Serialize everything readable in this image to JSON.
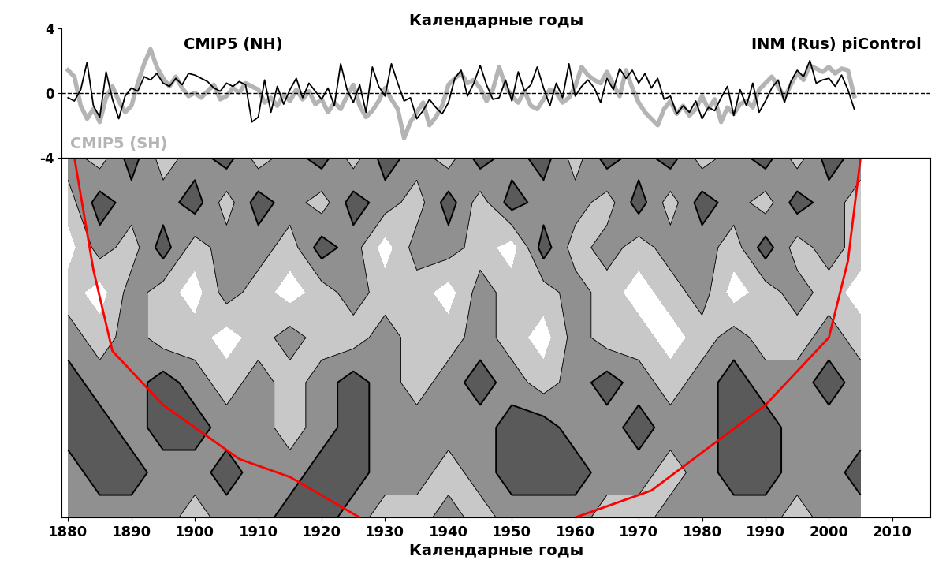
{
  "chart_data": [
    {
      "type": "line",
      "title": "Календарные годы",
      "x": [
        1880,
        1881,
        1882,
        1883,
        1884,
        1885,
        1886,
        1887,
        1888,
        1889,
        1890,
        1891,
        1892,
        1893,
        1894,
        1895,
        1896,
        1897,
        1898,
        1899,
        1900,
        1901,
        1902,
        1903,
        1904,
        1905,
        1906,
        1907,
        1908,
        1909,
        1910,
        1911,
        1912,
        1913,
        1914,
        1915,
        1916,
        1917,
        1918,
        1919,
        1920,
        1921,
        1922,
        1923,
        1924,
        1925,
        1926,
        1927,
        1928,
        1929,
        1930,
        1931,
        1932,
        1933,
        1934,
        1935,
        1936,
        1937,
        1938,
        1939,
        1940,
        1941,
        1942,
        1943,
        1944,
        1945,
        1946,
        1947,
        1948,
        1949,
        1950,
        1951,
        1952,
        1953,
        1954,
        1955,
        1956,
        1957,
        1958,
        1959,
        1960,
        1961,
        1962,
        1963,
        1964,
        1965,
        1966,
        1967,
        1968,
        1969,
        1970,
        1971,
        1972,
        1973,
        1974,
        1975,
        1976,
        1977,
        1978,
        1979,
        1980,
        1981,
        1982,
        1983,
        1984,
        1985,
        1986,
        1987,
        1988,
        1989,
        1990,
        1991,
        1992,
        1993,
        1994,
        1995,
        1996,
        1997,
        1998,
        1999,
        2000,
        2001,
        2002,
        2003,
        2004
      ],
      "series": [
        {
          "name": "CMIP5 (SH)",
          "color": "#b4b4b4",
          "values": [
            1.4,
            1.0,
            -0.8,
            -1.6,
            -1.0,
            -1.8,
            -0.3,
            0.4,
            -0.5,
            -1.2,
            -0.8,
            0.6,
            1.8,
            2.7,
            1.6,
            0.9,
            0.4,
            1.0,
            0.3,
            -0.2,
            0.0,
            -0.3,
            0.1,
            0.5,
            -0.4,
            -0.2,
            0.3,
            0.0,
            0.6,
            0.4,
            0.2,
            -0.6,
            -0.3,
            -0.8,
            -0.1,
            -0.5,
            0.2,
            -0.4,
            0.1,
            -0.7,
            -0.4,
            -1.2,
            -0.6,
            -1.0,
            -0.2,
            0.5,
            -0.8,
            -1.5,
            -1.1,
            -0.5,
            0.3,
            -0.4,
            -1.0,
            -2.8,
            -1.8,
            -1.2,
            -0.6,
            -2.0,
            -1.5,
            -0.8,
            0.5,
            0.9,
            1.2,
            0.6,
            0.8,
            0.3,
            -0.5,
            0.2,
            1.6,
            0.4,
            -0.2,
            -0.6,
            0.1,
            -0.8,
            -1.0,
            -0.4,
            0.2,
            0.0,
            -0.6,
            -0.3,
            0.4,
            1.6,
            1.1,
            0.8,
            0.6,
            1.3,
            0.5,
            -0.2,
            1.4,
            0.3,
            -0.6,
            -1.2,
            -1.6,
            -2.0,
            -1.0,
            -0.5,
            -1.3,
            -0.8,
            -1.4,
            -1.0,
            -0.2,
            -1.0,
            -0.4,
            -1.8,
            -0.9,
            -1.3,
            -0.7,
            -0.5,
            -0.9,
            0.2,
            0.6,
            1.0,
            0.4,
            -0.3,
            0.5,
            1.2,
            0.8,
            1.7,
            1.5,
            1.3,
            1.6,
            1.2,
            1.5,
            1.4,
            -0.2
          ]
        },
        {
          "name": "CMIP5 (NH)",
          "color": "#000000",
          "values": [
            -0.3,
            -0.5,
            0.2,
            1.9,
            -0.8,
            -1.5,
            1.3,
            -0.4,
            -1.6,
            -0.2,
            0.3,
            0.1,
            1.0,
            0.8,
            1.2,
            0.6,
            0.4,
            0.9,
            0.5,
            1.2,
            1.1,
            0.9,
            0.7,
            0.3,
            0.1,
            0.6,
            0.4,
            0.7,
            0.5,
            -1.8,
            -1.5,
            0.8,
            -1.2,
            0.4,
            -0.7,
            0.2,
            0.9,
            -0.3,
            0.6,
            0.1,
            -0.4,
            0.3,
            -0.8,
            1.8,
            0.2,
            -0.6,
            0.5,
            -1.2,
            1.6,
            0.4,
            -0.2,
            1.8,
            0.6,
            -0.5,
            -0.3,
            -1.6,
            -1.1,
            -0.4,
            -0.9,
            -1.3,
            -0.6,
            0.9,
            1.4,
            -0.2,
            0.6,
            1.7,
            0.5,
            -0.4,
            -0.3,
            0.8,
            -0.5,
            1.3,
            0.1,
            0.5,
            1.6,
            0.3,
            -0.8,
            0.6,
            -0.3,
            1.8,
            -0.2,
            0.4,
            0.8,
            0.3,
            -0.6,
            0.9,
            0.2,
            1.5,
            0.9,
            1.4,
            0.6,
            1.2,
            0.3,
            0.9,
            -0.4,
            -0.2,
            -1.3,
            -0.8,
            -1.2,
            -0.5,
            -1.6,
            -0.9,
            -1.1,
            -0.3,
            0.4,
            -1.4,
            0.2,
            -0.8,
            0.6,
            -1.2,
            -0.5,
            0.3,
            0.8,
            -0.6,
            0.7,
            1.4,
            1.0,
            2.0,
            0.6,
            0.8,
            0.9,
            0.4,
            1.1,
            0.2,
            -1.0
          ]
        }
      ],
      "annotations": [
        "INM (Rus) piControl"
      ],
      "reference_line": 0,
      "xlim": [
        1879,
        2016
      ],
      "xticks": [
        1880,
        1890,
        1900,
        1910,
        1920,
        1930,
        1940,
        1950,
        1960,
        1970,
        1980,
        1990,
        2000,
        2010
      ],
      "ylim": [
        -4,
        4
      ],
      "yticks": [
        -4,
        0,
        4
      ],
      "tick_labels": "y"
    },
    {
      "type": "contour",
      "xlabel": "Календарные годы",
      "x": [
        1880,
        1885,
        1890,
        1895,
        1900,
        1905,
        1910,
        1915,
        1920,
        1925,
        1930,
        1935,
        1940,
        1945,
        1950,
        1955,
        1960,
        1965,
        1970,
        1975,
        1980,
        1985,
        1990,
        1995,
        2000,
        2005
      ],
      "y": [
        0,
        1,
        2,
        3,
        4,
        5,
        6,
        7,
        8
      ],
      "cells": [
        [
          2,
          2,
          2,
          2,
          1,
          2,
          2,
          3,
          3,
          2,
          1,
          1,
          2,
          1,
          2,
          2,
          2,
          1,
          1,
          2,
          2,
          2,
          2,
          1,
          2,
          2
        ],
        [
          2,
          3,
          3,
          2,
          2,
          3,
          2,
          2,
          3,
          3,
          2,
          2,
          1,
          2,
          3,
          3,
          3,
          2,
          2,
          1,
          2,
          3,
          3,
          2,
          2,
          3
        ],
        [
          3,
          3,
          2,
          3,
          3,
          2,
          2,
          1,
          2,
          3,
          2,
          2,
          2,
          2,
          3,
          3,
          2,
          2,
          3,
          2,
          2,
          3,
          3,
          2,
          2,
          2
        ],
        [
          3,
          2,
          2,
          3,
          2,
          1,
          2,
          1,
          2,
          3,
          2,
          1,
          2,
          3,
          2,
          1,
          2,
          3,
          2,
          1,
          2,
          3,
          2,
          2,
          3,
          2
        ],
        [
          2,
          1,
          2,
          1,
          1,
          0,
          1,
          2,
          1,
          1,
          2,
          1,
          1,
          2,
          1,
          0,
          2,
          1,
          1,
          0,
          1,
          2,
          1,
          1,
          2,
          1
        ],
        [
          1,
          0,
          2,
          1,
          0,
          2,
          1,
          0,
          1,
          2,
          1,
          1,
          0,
          2,
          1,
          1,
          2,
          1,
          0,
          1,
          2,
          0,
          1,
          2,
          1,
          0
        ],
        [
          0,
          2,
          1,
          3,
          1,
          2,
          2,
          1,
          3,
          2,
          0,
          2,
          2,
          1,
          0,
          3,
          1,
          2,
          1,
          2,
          2,
          1,
          3,
          1,
          2,
          1
        ],
        [
          1,
          3,
          2,
          2,
          3,
          1,
          3,
          2,
          1,
          3,
          2,
          1,
          3,
          1,
          3,
          2,
          2,
          1,
          3,
          1,
          3,
          2,
          1,
          3,
          2,
          1
        ],
        [
          2,
          1,
          3,
          1,
          2,
          3,
          1,
          2,
          3,
          1,
          3,
          2,
          1,
          3,
          2,
          3,
          1,
          3,
          2,
          3,
          1,
          2,
          3,
          1,
          3,
          2
        ]
      ],
      "levels": [
        -0.5,
        0.5,
        1.5,
        2.5,
        3.5
      ],
      "colors": [
        "#ffffff",
        "#c8c8c8",
        "#909090",
        "#5a5a5a"
      ],
      "contour_lines": [
        1.5,
        2.5
      ],
      "cone": {
        "color": "#ff0000",
        "left": {
          "x": [
            1881,
            1884,
            1887,
            1895,
            1907,
            1915,
            1926
          ],
          "y": [
            8,
            5.5,
            3.7,
            2.5,
            1.3,
            0.9,
            0
          ]
        },
        "right": {
          "x": [
            1960,
            1972,
            1990,
            2000,
            2003,
            2005
          ],
          "y": [
            0,
            0.6,
            2.5,
            4.0,
            5.7,
            8
          ]
        }
      },
      "xlim": [
        1879,
        2016
      ],
      "xticks": [
        1880,
        1890,
        1900,
        1910,
        1920,
        1930,
        1940,
        1950,
        1960,
        1970,
        1980,
        1990,
        2000,
        2010
      ],
      "ylim": [
        0,
        8
      ],
      "tick_labels": "x"
    }
  ]
}
